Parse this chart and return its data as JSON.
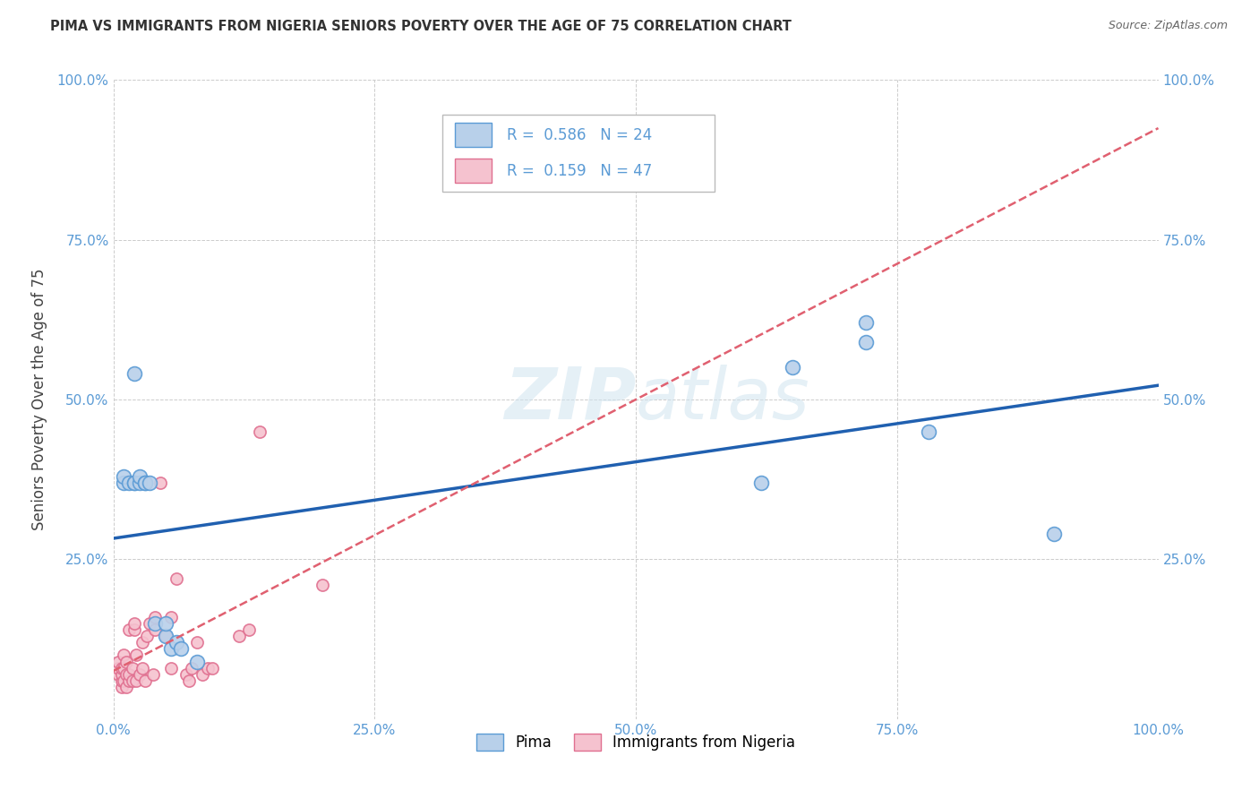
{
  "title": "PIMA VS IMMIGRANTS FROM NIGERIA SENIORS POVERTY OVER THE AGE OF 75 CORRELATION CHART",
  "source": "Source: ZipAtlas.com",
  "ylabel": "Seniors Poverty Over the Age of 75",
  "xlim": [
    0,
    1
  ],
  "ylim": [
    0,
    1
  ],
  "xticks": [
    0,
    0.25,
    0.5,
    0.75,
    1.0
  ],
  "yticks": [
    0,
    0.25,
    0.5,
    0.75,
    1.0
  ],
  "xticklabels": [
    "0.0%",
    "25.0%",
    "50.0%",
    "75.0%",
    "100.0%"
  ],
  "yticklabels": [
    "",
    "25.0%",
    "50.0%",
    "75.0%",
    "100.0%"
  ],
  "right_yticklabels": [
    "",
    "25.0%",
    "50.0%",
    "75.0%",
    "100.0%"
  ],
  "pima_R": 0.586,
  "pima_N": 24,
  "nigeria_R": 0.159,
  "nigeria_N": 47,
  "pima_color": "#b8d0ea",
  "pima_edge_color": "#5b9bd5",
  "nigeria_color": "#f5c2cf",
  "nigeria_edge_color": "#e07090",
  "pima_line_color": "#2060b0",
  "nigeria_line_color": "#e06070",
  "watermark_color": "#d0e4f0",
  "background_color": "#ffffff",
  "grid_color": "#cccccc",
  "pima_x": [
    0.01,
    0.01,
    0.015,
    0.02,
    0.02,
    0.02,
    0.025,
    0.025,
    0.03,
    0.03,
    0.035,
    0.04,
    0.05,
    0.05,
    0.055,
    0.06,
    0.065,
    0.08,
    0.62,
    0.65,
    0.72,
    0.72,
    0.78,
    0.9
  ],
  "pima_y": [
    0.37,
    0.38,
    0.37,
    0.37,
    0.37,
    0.54,
    0.37,
    0.38,
    0.37,
    0.37,
    0.37,
    0.15,
    0.13,
    0.15,
    0.11,
    0.12,
    0.11,
    0.09,
    0.37,
    0.55,
    0.59,
    0.62,
    0.45,
    0.29
  ],
  "nigeria_x": [
    0.005,
    0.005,
    0.005,
    0.008,
    0.008,
    0.008,
    0.008,
    0.01,
    0.01,
    0.01,
    0.012,
    0.012,
    0.012,
    0.015,
    0.015,
    0.015,
    0.018,
    0.018,
    0.02,
    0.02,
    0.022,
    0.022,
    0.025,
    0.028,
    0.028,
    0.03,
    0.032,
    0.035,
    0.038,
    0.04,
    0.04,
    0.045,
    0.05,
    0.055,
    0.055,
    0.06,
    0.07,
    0.072,
    0.075,
    0.08,
    0.085,
    0.09,
    0.095,
    0.12,
    0.13,
    0.14,
    0.2
  ],
  "nigeria_y": [
    0.07,
    0.08,
    0.09,
    0.05,
    0.06,
    0.07,
    0.08,
    0.06,
    0.08,
    0.1,
    0.05,
    0.07,
    0.09,
    0.06,
    0.07,
    0.14,
    0.06,
    0.08,
    0.14,
    0.15,
    0.06,
    0.1,
    0.07,
    0.08,
    0.12,
    0.06,
    0.13,
    0.15,
    0.07,
    0.14,
    0.16,
    0.37,
    0.13,
    0.08,
    0.16,
    0.22,
    0.07,
    0.06,
    0.08,
    0.12,
    0.07,
    0.08,
    0.08,
    0.13,
    0.14,
    0.45,
    0.21
  ],
  "marker_size_pima": 130,
  "marker_size_nigeria": 90,
  "title_fontsize": 10.5,
  "axis_label_fontsize": 11,
  "ylabel_fontsize": 12
}
